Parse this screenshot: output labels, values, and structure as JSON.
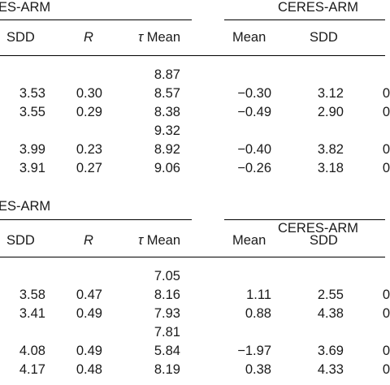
{
  "sections": [
    {
      "group_left": "ES-ARM",
      "group_right": "CERES-ARM",
      "headers": {
        "sdd": "SDD",
        "r": "R",
        "tau_symbol": "τ",
        "tau_mean": "Mean",
        "mean": "Mean",
        "sdd2": "SDD"
      },
      "rows": [
        {
          "sdd": "",
          "r": "",
          "tau": "8.87",
          "mean": "",
          "sdd2": "",
          "edge": ""
        },
        {
          "sdd": "3.53",
          "r": "0.30",
          "tau": "8.57",
          "mean": "−0.30",
          "sdd2": "3.12",
          "edge": "0"
        },
        {
          "sdd": "3.55",
          "r": "0.29",
          "tau": "8.38",
          "mean": "−0.49",
          "sdd2": "2.90",
          "edge": "0"
        },
        {
          "sdd": "",
          "r": "",
          "tau": "9.32",
          "mean": "",
          "sdd2": "",
          "edge": ""
        },
        {
          "sdd": "3.99",
          "r": "0.23",
          "tau": "8.92",
          "mean": "−0.40",
          "sdd2": "3.82",
          "edge": "0"
        },
        {
          "sdd": "3.91",
          "r": "0.27",
          "tau": "9.06",
          "mean": "−0.26",
          "sdd2": "3.18",
          "edge": "0"
        }
      ]
    },
    {
      "group_left": "ES-ARM",
      "group_right": "CERES-ARM",
      "headers": {
        "sdd": "SDD",
        "r": "R",
        "tau_symbol": "τ",
        "tau_mean": "Mean",
        "mean": "Mean",
        "sdd2": "SDD"
      },
      "rows": [
        {
          "sdd": "",
          "r": "",
          "tau": "7.05",
          "mean": "",
          "sdd2": "",
          "edge": ""
        },
        {
          "sdd": "3.58",
          "r": "0.47",
          "tau": "8.16",
          "mean": "1.11",
          "sdd2": "2.55",
          "edge": "0"
        },
        {
          "sdd": "3.41",
          "r": "0.49",
          "tau": "7.93",
          "mean": "0.88",
          "sdd2": "4.38",
          "edge": "0"
        },
        {
          "sdd": "",
          "r": "",
          "tau": "7.81",
          "mean": "",
          "sdd2": "",
          "edge": ""
        },
        {
          "sdd": "4.08",
          "r": "0.49",
          "tau": "5.84",
          "mean": "−1.97",
          "sdd2": "3.69",
          "edge": "0"
        },
        {
          "sdd": "4.17",
          "r": "0.48",
          "tau": "8.19",
          "mean": "0.38",
          "sdd2": "4.33",
          "edge": "0"
        }
      ]
    }
  ]
}
